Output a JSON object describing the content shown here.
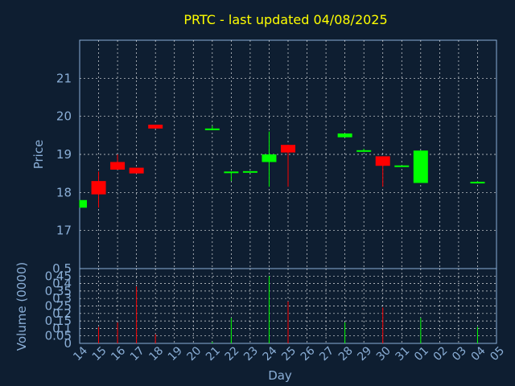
{
  "chart_data": {
    "type": "candlestick",
    "title": "PRTC - last updated 04/08/2025",
    "xlabel": "Day",
    "ylabel": "Price",
    "volume_ylabel": "Volume (0000)",
    "x_ticks": [
      "14",
      "15",
      "16",
      "17",
      "18",
      "19",
      "20",
      "21",
      "22",
      "23",
      "24",
      "25",
      "26",
      "27",
      "28",
      "29",
      "30",
      "31",
      "01",
      "02",
      "03",
      "04",
      "05"
    ],
    "price_ylim": [
      16,
      22
    ],
    "price_yticks": [
      "17",
      "18",
      "19",
      "20",
      "21"
    ],
    "volume_ylim": [
      0,
      0.5
    ],
    "volume_yticks": [
      "0",
      "0.05",
      "0.1",
      "0.15",
      "0.2",
      "0.25",
      "0.3",
      "0.35",
      "0.4",
      "0.45",
      "0.5"
    ],
    "grid": true,
    "colors": {
      "up": "#00ff00",
      "down": "#ff0000",
      "title": "#ffff00",
      "axis": "#8aaed6",
      "background": "#0e1e31"
    },
    "candles": [
      {
        "x": 0,
        "open": 17.6,
        "high": 17.8,
        "low": 17.6,
        "close": 17.8,
        "volume": 0.0
      },
      {
        "x": 1,
        "open": 18.3,
        "high": 18.55,
        "low": 17.6,
        "close": 17.95,
        "volume": 0.11
      },
      {
        "x": 2,
        "open": 18.8,
        "high": 19.0,
        "low": 18.6,
        "close": 18.6,
        "volume": 0.14
      },
      {
        "x": 3,
        "open": 18.65,
        "high": 18.65,
        "low": 18.5,
        "close": 18.5,
        "volume": 0.38
      },
      {
        "x": 4,
        "open": 19.78,
        "high": 19.78,
        "low": 19.68,
        "close": 19.68,
        "volume": 0.06
      },
      {
        "x": 7,
        "open": 19.65,
        "high": 19.75,
        "low": 19.65,
        "close": 19.68,
        "volume": 0.01
      },
      {
        "x": 8,
        "open": 18.55,
        "high": 18.55,
        "low": 18.3,
        "close": 18.55,
        "volume": 0.17
      },
      {
        "x": 9,
        "open": 18.55,
        "high": 18.55,
        "low": 18.55,
        "close": 18.56,
        "volume": 0.0
      },
      {
        "x": 10,
        "open": 18.8,
        "high": 19.6,
        "low": 18.15,
        "close": 19.0,
        "volume": 0.45
      },
      {
        "x": 11,
        "open": 19.25,
        "high": 19.25,
        "low": 18.15,
        "close": 19.05,
        "volume": 0.28
      },
      {
        "x": 14,
        "open": 19.45,
        "high": 19.55,
        "low": 19.45,
        "close": 19.55,
        "volume": 0.14
      },
      {
        "x": 15,
        "open": 19.1,
        "high": 19.15,
        "low": 19.1,
        "close": 19.11,
        "volume": 0.0
      },
      {
        "x": 16,
        "open": 18.95,
        "high": 18.95,
        "low": 18.15,
        "close": 18.7,
        "volume": 0.24
      },
      {
        "x": 17,
        "open": 18.7,
        "high": 18.7,
        "low": 18.7,
        "close": 18.71,
        "volume": 0.0
      },
      {
        "x": 18,
        "open": 18.25,
        "high": 19.1,
        "low": 18.25,
        "close": 19.1,
        "volume": 0.17
      },
      {
        "x": 21,
        "open": 18.25,
        "high": 18.3,
        "low": 18.25,
        "close": 18.28,
        "volume": 0.11
      }
    ]
  }
}
